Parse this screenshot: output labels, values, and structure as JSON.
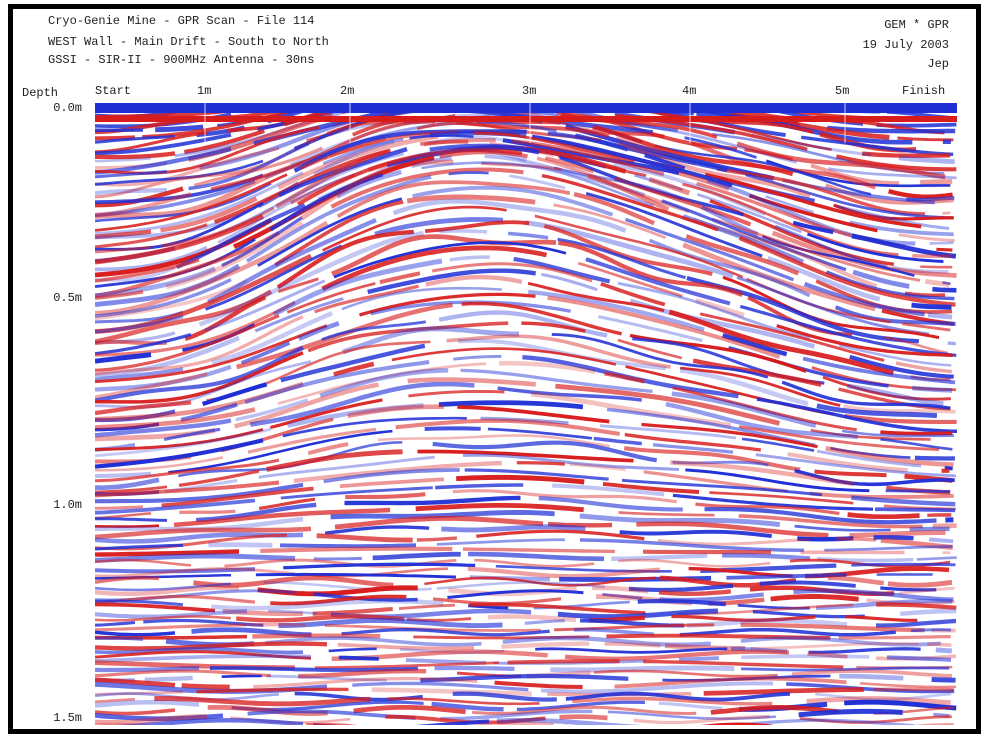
{
  "header": {
    "left": [
      "Cryo-Genie Mine - GPR Scan - File 114",
      "WEST Wall - Main Drift - South to North",
      "GSSI - SIR-II - 900MHz Antenna - 30ns"
    ],
    "right": [
      "GEM * GPR",
      "19 July 2003",
      "Jep"
    ]
  },
  "axis": {
    "depth_heading": "Depth",
    "distance_labels": [
      "Start",
      "1m",
      "2m",
      "3m",
      "4m",
      "5m",
      "Finish"
    ],
    "depth_labels": [
      "0.0m",
      "0.5m",
      "1.0m",
      "1.5m"
    ]
  }
}
